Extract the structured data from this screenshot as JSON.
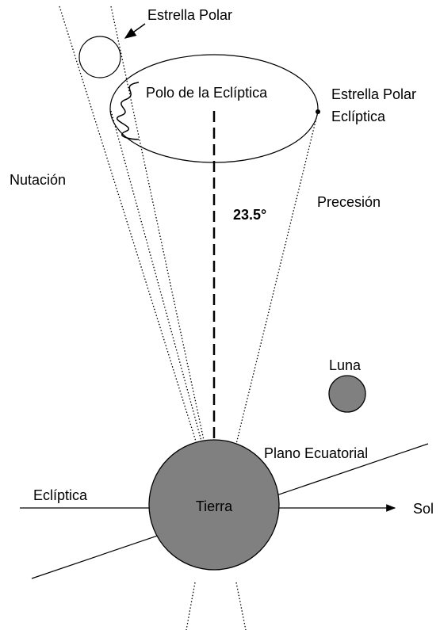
{
  "labels": {
    "polar_star": "Estrella Polar",
    "ecliptic_pole": "Polo de la Eclíptica",
    "ecliptic_polar_star_1": "Estrella Polar",
    "ecliptic_polar_star_2": "Eclíptica",
    "nutation": "Nutación",
    "precession": "Precesión",
    "angle": "23.5°",
    "moon": "Luna",
    "equatorial_plane": "Plano Ecuatorial",
    "ecliptic": "Eclíptica",
    "earth": "Tierra",
    "sun": "Sol"
  }
}
